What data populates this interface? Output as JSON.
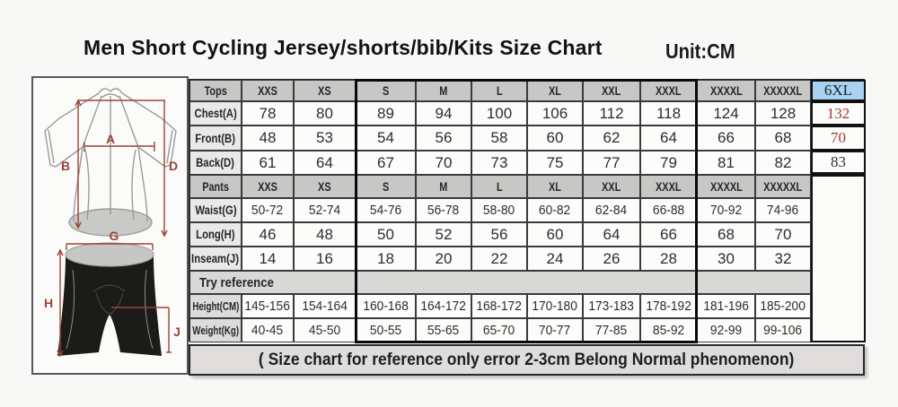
{
  "title": "Men Short Cycling Jersey/shorts/bib/Kits Size Chart",
  "unit_label": "Unit:CM",
  "colors": {
    "header_bg": "#c7c7c5",
    "label_bg": "#e9e9e7",
    "highlight_blue": "#a9d2f0",
    "red_value": "#a13a31",
    "diagram_red": "#9e4238",
    "thick_border": "#0a0a0a"
  },
  "diagram": {
    "jersey_labels": [
      "A",
      "B",
      "D"
    ],
    "shorts_labels": [
      "G",
      "H",
      "J"
    ]
  },
  "table": {
    "tops_header": [
      "Tops",
      "XXS",
      "XS",
      "S",
      "M",
      "L",
      "XL",
      "XXL",
      "XXXL",
      "XXXXL",
      "XXXXXL",
      "6XL"
    ],
    "rows_tops": [
      {
        "label": "Chest(A)",
        "values": [
          "78",
          "80",
          "89",
          "94",
          "100",
          "106",
          "112",
          "118",
          "124",
          "128"
        ],
        "last": "132",
        "last_red": true
      },
      {
        "label": "Front(B)",
        "values": [
          "48",
          "53",
          "54",
          "56",
          "58",
          "60",
          "62",
          "64",
          "66",
          "68"
        ],
        "last": "70",
        "last_red": true
      },
      {
        "label": "Back(D)",
        "values": [
          "61",
          "64",
          "67",
          "70",
          "73",
          "75",
          "77",
          "79",
          "81",
          "82"
        ],
        "last": "83",
        "last_red": false
      }
    ],
    "pants_header": [
      "Pants",
      "XXS",
      "XS",
      "S",
      "M",
      "L",
      "XL",
      "XXL",
      "XXXL",
      "XXXXL",
      "XXXXXL"
    ],
    "rows_pants": [
      {
        "label": "Waist(G)",
        "values": [
          "50-72",
          "52-74",
          "54-76",
          "56-78",
          "58-80",
          "60-82",
          "62-84",
          "66-88",
          "70-92",
          "74-96"
        ],
        "range": true
      },
      {
        "label": "Long(H)",
        "values": [
          "46",
          "48",
          "50",
          "52",
          "56",
          "60",
          "64",
          "66",
          "68",
          "70"
        ],
        "range": false
      },
      {
        "label": "Inseam(J)",
        "values": [
          "14",
          "16",
          "18",
          "20",
          "22",
          "24",
          "26",
          "28",
          "30",
          "32"
        ],
        "range": false
      }
    ],
    "try_reference_label": "Try reference",
    "rows_reference": [
      {
        "label": "Height(CM)",
        "values": [
          "145-156",
          "154-164",
          "160-168",
          "164-172",
          "168-172",
          "170-180",
          "173-183",
          "178-192",
          "181-196",
          "185-200"
        ]
      },
      {
        "label": "Weight(Kg)",
        "values": [
          "40-45",
          "45-50",
          "50-55",
          "55-65",
          "65-70",
          "70-77",
          "77-85",
          "85-92",
          "92-99",
          "99-106"
        ]
      }
    ],
    "footnote": "( Size chart for reference only  error 2-3cm  Belong Normal phenomenon)"
  }
}
